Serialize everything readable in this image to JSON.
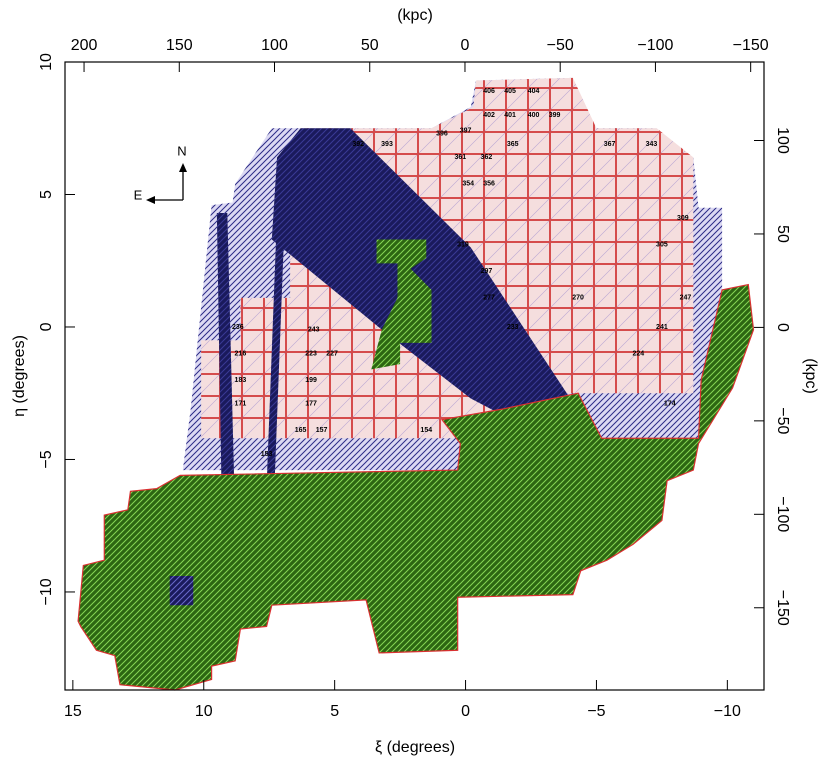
{
  "chart_data": {
    "type": "map",
    "xlabel": "ξ (degrees)",
    "ylabel": "η (degrees)",
    "x2label": "(kpc)",
    "y2label": "(kpc)",
    "xlim": [
      15.3,
      -11.4
    ],
    "xticks": [
      15,
      10,
      5,
      0,
      {
        "value": -5,
        "label": "−5"
      },
      {
        "value": -10,
        "label": "−10"
      }
    ],
    "x2lim": [
      210,
      -157
    ],
    "x2ticks": [
      200,
      150,
      100,
      50,
      0,
      {
        "value": -50,
        "label": "−50"
      },
      {
        "value": -100,
        "label": "−100"
      },
      {
        "value": -150,
        "label": "−150"
      }
    ],
    "ylim": [
      -13.7,
      10
    ],
    "yticks": [
      {
        "value": -10,
        "label": "−10"
      },
      {
        "value": -5,
        "label": "−5"
      },
      0,
      5,
      10
    ],
    "y2lim": [
      -194,
      142
    ],
    "y2ticks": [
      {
        "value": -150,
        "label": "−150"
      },
      {
        "value": -100,
        "label": "−100"
      },
      {
        "value": -50,
        "label": "−50"
      },
      0,
      50,
      100
    ],
    "compass": {
      "north": "N",
      "east": "E"
    },
    "regions": [
      {
        "color": "#dcd9f3",
        "hatch": "#2b2b86",
        "style": "hatch",
        "x": [
          10.8,
          10.5,
          9.7,
          8.9,
          8.8,
          7.4,
          1.3,
          -0.2,
          -0.4,
          -4.1,
          -4.3,
          -5.0,
          -7.3,
          -7.9,
          -8.7,
          -8.9,
          -9.8,
          -9.8,
          -9.0,
          -8.9,
          0.3
        ],
        "y": [
          -5.4,
          -3.1,
          4.6,
          4.7,
          5.4,
          7.5,
          7.5,
          8.3,
          9.3,
          9.4,
          8.8,
          7.5,
          7.5,
          6.6,
          6.4,
          4.5,
          4.5,
          1.4,
          -2.0,
          -4.2,
          -5.4
        ]
      },
      {
        "color": "#f5dede",
        "hatch": "#d23c3c",
        "style": "grid",
        "x": [
          6.7,
          6.3,
          1.3,
          -0.3,
          -0.4,
          -4.1,
          -5.0,
          -7.3,
          -8.7,
          -8.7,
          -8.7,
          -3.7,
          0.5,
          10.1,
          10.1,
          8.6,
          8.6,
          6.7
        ],
        "y": [
          6.7,
          7.5,
          7.5,
          8.3,
          9.3,
          9.4,
          7.5,
          7.5,
          6.4,
          4.3,
          -2.5,
          -2.5,
          -4.2,
          -4.2,
          -0.5,
          -0.5,
          1.1,
          1.1
        ]
      },
      {
        "color": "#1a1a5c",
        "hatch": "#3a3a96",
        "style": "hatch",
        "x": [
          7.2,
          6.3,
          4.4,
          -0.2,
          -4.8,
          -3.1,
          -0.2,
          3.2,
          7.4
        ],
        "y": [
          6.4,
          7.5,
          7.5,
          3.0,
          -3.9,
          -4.2,
          -2.7,
          -0.1,
          3.3
        ]
      },
      {
        "color": "#1a1a5c",
        "hatch": "#3a3a96",
        "style": "hatch",
        "x": [
          9.5,
          9.1,
          8.8,
          9.3
        ],
        "y": [
          4.3,
          4.3,
          -7.3,
          -7.3
        ]
      },
      {
        "color": "#1a1a5c",
        "hatch": "#3a3a96",
        "style": "hatch",
        "x": [
          7.2,
          6.9,
          7.4,
          7.7
        ],
        "y": [
          4.3,
          4.3,
          -8.6,
          -8.6
        ]
      },
      {
        "color": "#2c6612",
        "hatch": "#86d654",
        "style": "hatch",
        "x": [
          14.8,
          14.6,
          13.8,
          13.8,
          12.9,
          12.8,
          11.8,
          10.9,
          0.3,
          0.2,
          0.9,
          -1.4,
          -4.3,
          -5.2,
          -8.9,
          -9.0,
          -9.8,
          -10.8,
          -11.0,
          -10.2,
          -8.9,
          -8.7,
          -7.7,
          -7.5,
          -6.4,
          -5.4,
          -4.4,
          -4.1,
          0.3,
          0.3,
          3.3,
          3.8,
          7.4,
          7.6,
          8.6,
          8.8,
          9.7,
          9.7,
          11.1,
          13.2,
          13.4,
          14.1,
          14.7
        ],
        "y": [
          -11.1,
          -9.0,
          -8.8,
          -7.1,
          -6.9,
          -6.2,
          -6.1,
          -5.6,
          -5.4,
          -4.4,
          -3.5,
          -3.1,
          -2.5,
          -4.2,
          -4.2,
          -2.0,
          1.4,
          1.6,
          -0.1,
          -2.3,
          -4.4,
          -5.4,
          -5.8,
          -7.3,
          -8.2,
          -8.8,
          -9.2,
          -10.1,
          -10.2,
          -12.2,
          -12.3,
          -10.3,
          -10.5,
          -11.3,
          -11.4,
          -12.6,
          -12.8,
          -13.3,
          -13.7,
          -13.5,
          -12.4,
          -12.2,
          -11.3
        ]
      },
      {
        "color": "#2c6612",
        "hatch": "#86d654",
        "style": "hatch",
        "x": [
          3.4,
          1.5,
          1.5,
          2.1,
          1.3,
          1.3,
          2.5,
          2.5,
          3.6,
          3.2,
          2.6,
          2.6,
          3.4
        ],
        "y": [
          3.3,
          3.3,
          2.6,
          2.2,
          1.4,
          -0.6,
          -0.6,
          -1.4,
          -1.6,
          -0.1,
          1.1,
          2.4,
          2.4
        ]
      },
      {
        "color": "#1a1a5c",
        "hatch": "#6a6acc",
        "style": "hatch",
        "x": [
          11.3,
          10.4,
          10.4,
          11.3
        ],
        "y": [
          -9.4,
          -9.4,
          -10.5,
          -10.5
        ]
      }
    ],
    "fields": {
      "labels": [
        "406",
        "405",
        "404",
        "402",
        "401",
        "400",
        "399",
        "396",
        "397",
        "393",
        "392",
        "361",
        "362",
        "365",
        "367",
        "343",
        "354",
        "356",
        "319",
        "309",
        "305",
        "297",
        "277",
        "270",
        "247",
        "233",
        "241",
        "236",
        "243",
        "223",
        "227",
        "199",
        "177",
        "165",
        "157",
        "154",
        "153",
        "174",
        "216",
        "183",
        "171",
        "224"
      ],
      "x": [
        -0.9,
        -1.7,
        -2.6,
        -0.9,
        -1.7,
        -2.6,
        -3.4,
        0.9,
        0.0,
        3.0,
        4.1,
        0.2,
        -0.8,
        -1.8,
        -5.5,
        -7.1,
        -0.1,
        -0.9,
        0.1,
        -8.3,
        -7.5,
        -0.8,
        -0.9,
        -4.3,
        -8.4,
        -1.8,
        -7.5,
        8.7,
        5.8,
        5.9,
        5.1,
        5.9,
        5.9,
        6.3,
        5.5,
        1.5,
        7.6,
        -7.8,
        8.6,
        8.6,
        8.6,
        -6.6
      ],
      "y": [
        8.9,
        8.9,
        8.9,
        8.0,
        8.0,
        8.0,
        8.0,
        7.3,
        7.4,
        6.9,
        6.9,
        6.4,
        6.4,
        6.9,
        6.9,
        6.9,
        5.4,
        5.4,
        3.1,
        4.1,
        3.1,
        2.1,
        1.1,
        1.1,
        1.1,
        0.0,
        0.0,
        0.0,
        -0.1,
        -1.0,
        -1.0,
        -2.0,
        -2.9,
        -3.9,
        -3.9,
        -3.9,
        -4.8,
        -2.9,
        -1.0,
        -2.0,
        -2.9,
        -1.0
      ]
    }
  }
}
